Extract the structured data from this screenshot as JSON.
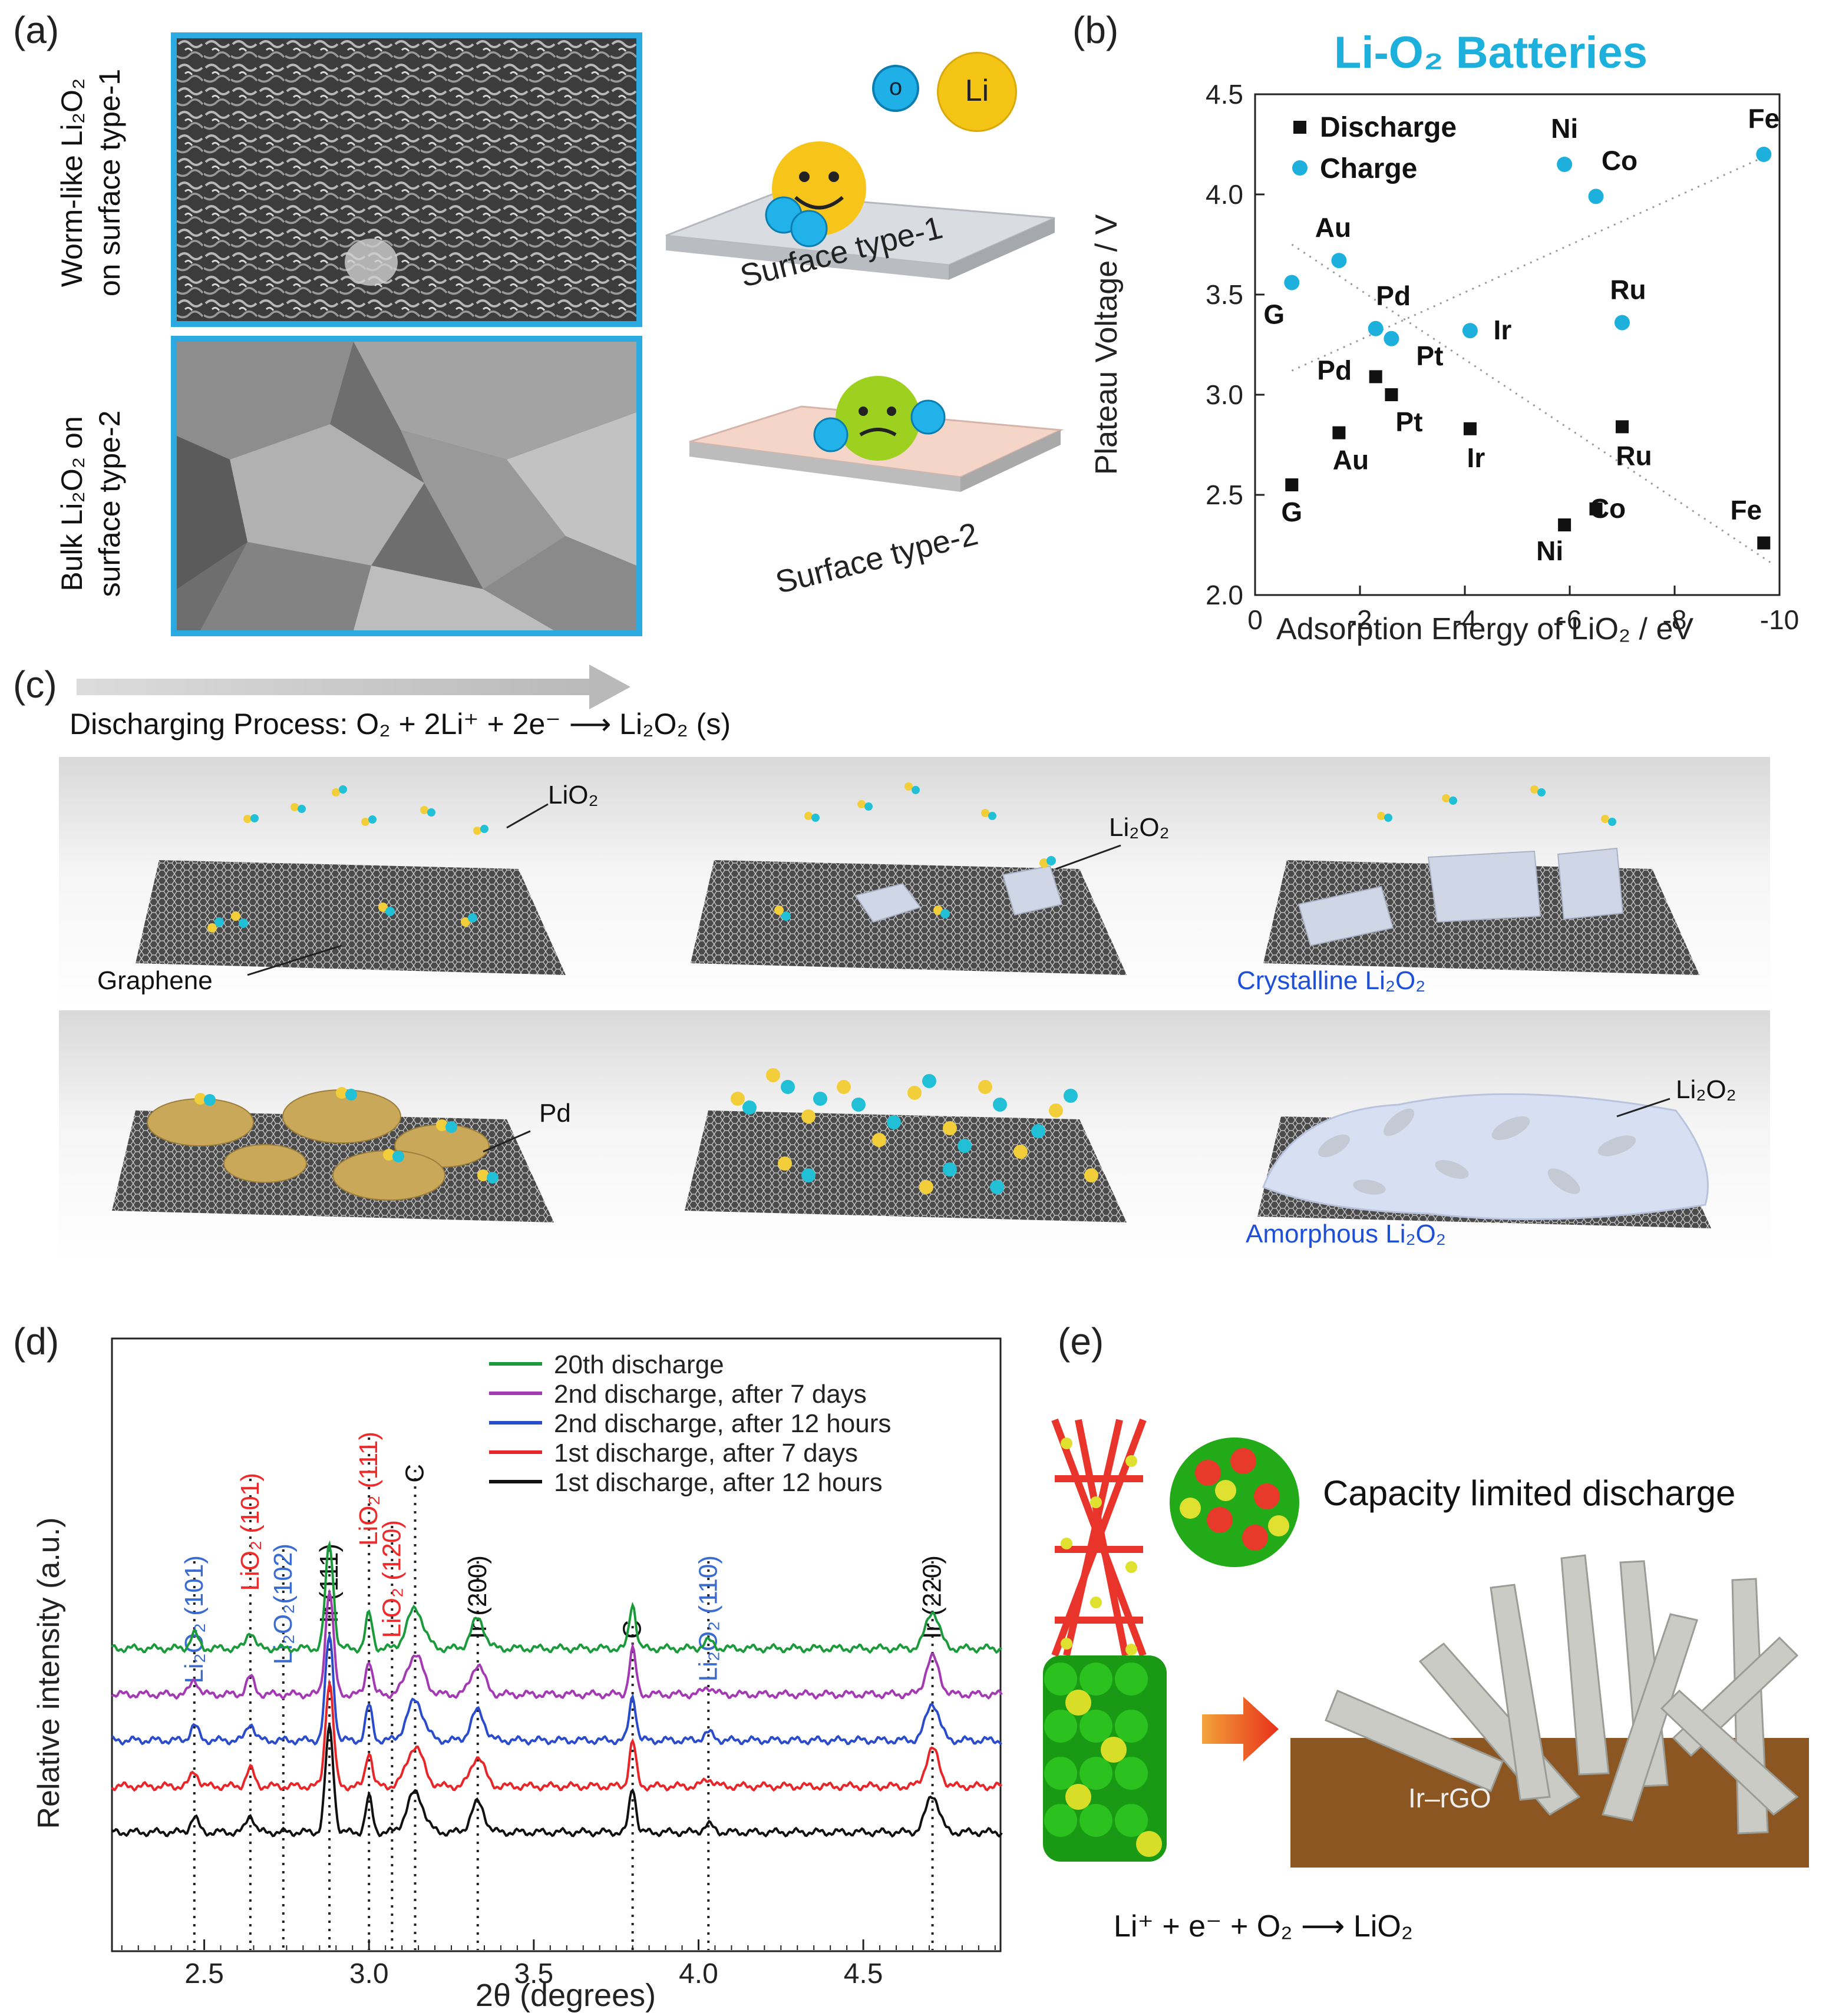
{
  "panels": {
    "a": "(a)",
    "b": "(b)",
    "c": "(c)",
    "d": "(d)",
    "e": "(e)"
  },
  "panel_a": {
    "label_top_line1": "Worm-like Li₂O₂",
    "label_top_line2": "on surface type-1",
    "label_bottom_line1": "Bulk Li₂O₂ on",
    "label_bottom_line2": "surface type-2",
    "legend_o": "o",
    "legend_li": "Li",
    "surface1": "Surface type-1",
    "surface2": "Surface type-2"
  },
  "panel_c": {
    "process": "Discharging Process: O₂ + 2Li⁺ + 2e⁻  ⟶  Li₂O₂ (s)",
    "lio2": "LiO₂",
    "li2o2": "Li₂O₂",
    "graphene": "Graphene",
    "crystalline": "Crystalline Li₂O₂",
    "pd": "Pd",
    "li2o2_b": "Li₂O₂",
    "amorphous": "Amorphous Li₂O₂"
  },
  "panel_e": {
    "caption": "Capacity limited discharge",
    "substrate": "Ir–rGO",
    "reaction": "Li⁺ + e⁻ + O₂ ⟶ LiO₂"
  },
  "chart_data": [
    {
      "type": "scatter",
      "title": "Li-O₂ Batteries",
      "xlabel": "Adsorption Energy of LiO₂ / eV",
      "ylabel": "Plateau Voltage / V",
      "xlim": [
        0,
        -10
      ],
      "ylim": [
        2.0,
        4.5
      ],
      "xticks": [
        "0",
        "-2",
        "-4",
        "-6",
        "-8",
        "-10"
      ],
      "yticks": [
        "2.0",
        "2.5",
        "3.0",
        "3.5",
        "4.0",
        "4.5"
      ],
      "legend": "top-left",
      "series": [
        {
          "name": "Discharge",
          "marker": "square",
          "color": "#111111",
          "points": [
            {
              "label": "G",
              "x": -0.7,
              "y": 2.55
            },
            {
              "label": "Au",
              "x": -1.6,
              "y": 2.81
            },
            {
              "label": "Pd",
              "x": -2.3,
              "y": 3.09
            },
            {
              "label": "Pt",
              "x": -2.6,
              "y": 3.0
            },
            {
              "label": "Ir",
              "x": -4.1,
              "y": 2.83
            },
            {
              "label": "Ni",
              "x": -5.9,
              "y": 2.35
            },
            {
              "label": "Co",
              "x": -6.5,
              "y": 2.43
            },
            {
              "label": "Ru",
              "x": -7.0,
              "y": 2.84
            },
            {
              "label": "Fe",
              "x": -9.7,
              "y": 2.26
            }
          ]
        },
        {
          "name": "Charge",
          "marker": "circle",
          "color": "#1eb0dc",
          "points": [
            {
              "label": "G",
              "x": -0.7,
              "y": 3.56
            },
            {
              "label": "Au",
              "x": -1.6,
              "y": 3.67
            },
            {
              "label": "Pd",
              "x": -2.3,
              "y": 3.33
            },
            {
              "label": "Pt",
              "x": -2.6,
              "y": 3.28
            },
            {
              "label": "Ir",
              "x": -4.1,
              "y": 3.32
            },
            {
              "label": "Ni",
              "x": -5.9,
              "y": 4.15
            },
            {
              "label": "Co",
              "x": -6.5,
              "y": 3.99
            },
            {
              "label": "Ru",
              "x": -7.0,
              "y": 3.36
            },
            {
              "label": "Fe",
              "x": -9.7,
              "y": 4.2
            }
          ]
        }
      ],
      "trendlines": [
        {
          "series": "Charge",
          "from": [
            -0.7,
            3.12
          ],
          "to": [
            -9.9,
            4.21
          ]
        },
        {
          "series": "Discharge",
          "from": [
            -0.7,
            3.75
          ],
          "to": [
            -9.9,
            2.15
          ]
        }
      ]
    },
    {
      "type": "line",
      "xlabel": "2θ (degrees)",
      "ylabel": "Relative intensity (a.u.)",
      "xlim": [
        2.22,
        4.92
      ],
      "xticks": [
        "2.5",
        "3.0",
        "3.5",
        "4.0",
        "4.5"
      ],
      "legend": "top-right",
      "series": [
        {
          "name": "20th discharge",
          "color": "#1a9a3a",
          "offset": 4
        },
        {
          "name": "2nd discharge, after 7 days",
          "color": "#a33ab3",
          "offset": 3
        },
        {
          "name": "2nd discharge, after 12 hours",
          "color": "#2a4bcc",
          "offset": 2
        },
        {
          "name": "1st discharge, after 7 days",
          "color": "#e8262a",
          "offset": 1
        },
        {
          "name": "1st discharge, after 12 hours",
          "color": "#111111",
          "offset": 0
        }
      ],
      "reference_peaks": [
        {
          "label": "Li₂O₂ (101)",
          "x": 2.47,
          "color": "#3a6bd0"
        },
        {
          "label": "LiO₂ (101)",
          "x": 2.64,
          "color": "#ee2a2a"
        },
        {
          "label": "Li₂O₂(102)",
          "x": 2.74,
          "color": "#3a6bd0"
        },
        {
          "label": "Ir (111)",
          "x": 2.88,
          "color": "#111111"
        },
        {
          "label": "LiO₂ (111)",
          "x": 3.0,
          "color": "#ee2a2a"
        },
        {
          "label": "LiO₂ (120)",
          "x": 3.07,
          "color": "#ee2a2a"
        },
        {
          "label": "C",
          "x": 3.14,
          "color": "#111111"
        },
        {
          "label": "Ir (200)",
          "x": 3.33,
          "color": "#111111"
        },
        {
          "label": "C",
          "x": 3.8,
          "color": "#111111"
        },
        {
          "label": "Li₂O₂ (110)",
          "x": 4.03,
          "color": "#3a6bd0"
        },
        {
          "label": "Ir (220)",
          "x": 4.71,
          "color": "#111111"
        }
      ]
    }
  ]
}
